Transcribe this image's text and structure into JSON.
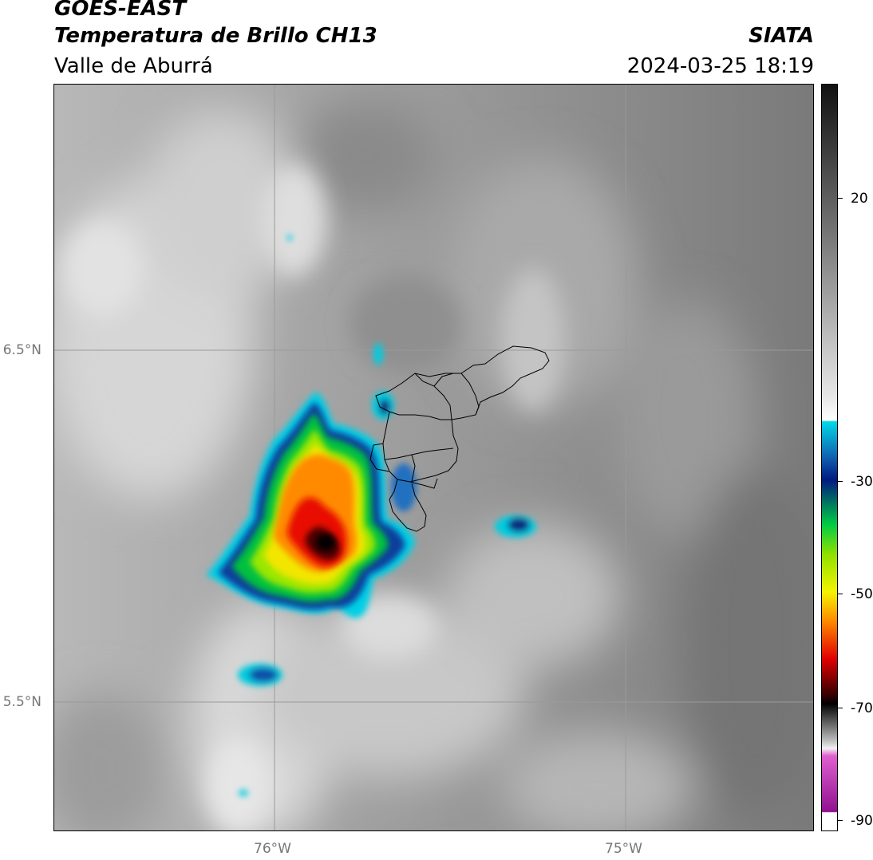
{
  "header": {
    "line1": "GOES-EAST",
    "line2": "Temperatura de Brillo CH13",
    "line3": "Valle de Aburrá",
    "org": "SIATA",
    "timestamp": "2024-03-25 18:19"
  },
  "map": {
    "lat_ticks": [
      "6.5°N",
      "5.5°N"
    ],
    "lon_ticks": [
      "76°W",
      "75°W"
    ]
  },
  "colorbar": {
    "ticks": [
      "20",
      "-30",
      "-50",
      "-70",
      "-90"
    ],
    "colors": {
      "top": "#111111",
      "gray_high": "#808080",
      "gray_light": "#e8e8e8",
      "cyan": "#00d8e8",
      "blue": "#1060b0",
      "navy": "#001a80",
      "green": "#00cc44",
      "yellow": "#f4f400",
      "orange": "#ff8800",
      "red": "#e00000",
      "dark": "#300000",
      "black": "#000000",
      "gray_low": "#bfbfbf",
      "magenta": "#e060d0",
      "purple": "#901090"
    }
  }
}
